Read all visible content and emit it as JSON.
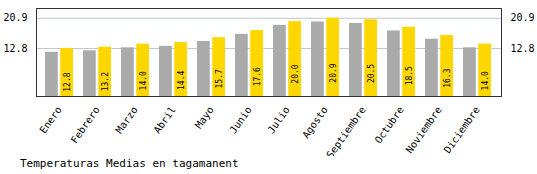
{
  "chart_data": {
    "type": "bar",
    "title": "Temperaturas Medias en tagamanent",
    "categories": [
      "Enero",
      "Febrero",
      "Marzo",
      "Abril",
      "Mayo",
      "Junio",
      "Julio",
      "Agosto",
      "Septiembre",
      "Octubre",
      "Noviembre",
      "Diciembre"
    ],
    "series": [
      {
        "color": "#AAAAAA",
        "values": [
          11.8,
          12.2,
          13.0,
          13.4,
          14.7,
          16.6,
          19.0,
          19.9,
          19.5,
          17.5,
          15.3,
          13.0
        ]
      },
      {
        "color": "#FFD700",
        "values": [
          12.8,
          13.2,
          14.0,
          14.4,
          15.7,
          17.6,
          20.0,
          20.9,
          20.5,
          18.5,
          16.3,
          14.0
        ],
        "data_labels": true,
        "value_labels": [
          "12.8",
          "13.2",
          "14.0",
          "14.4",
          "15.7",
          "17.6",
          "20.0",
          "20.9",
          "20.5",
          "18.5",
          "16.3",
          "14.0"
        ]
      }
    ],
    "ylim": [
      0,
      23.5
    ],
    "yticks": [
      12.8,
      20.9
    ],
    "grid": true
  }
}
